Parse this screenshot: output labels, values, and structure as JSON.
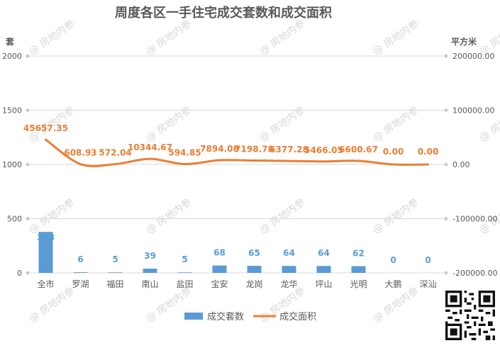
{
  "chart_data": {
    "type": "bar+line",
    "title": "周度各区一手住宅成交套数和成交面积",
    "left_axis_unit": "套",
    "right_axis_unit": "平方米",
    "categories": [
      "全市",
      "罗湖",
      "福田",
      "南山",
      "盐田",
      "宝安",
      "龙岗",
      "龙华",
      "坪山",
      "光明",
      "大鹏",
      "深汕"
    ],
    "series": [
      {
        "name": "成交套数",
        "type": "bar",
        "axis": "left",
        "color": "#5b9bd5",
        "values": [
          378,
          6,
          5,
          39,
          5,
          68,
          65,
          64,
          64,
          62,
          0,
          0
        ],
        "labels": [
          "378",
          "6",
          "5",
          "39",
          "5",
          "68",
          "65",
          "64",
          "64",
          "62",
          "0",
          "0"
        ]
      },
      {
        "name": "成交面积",
        "type": "line",
        "axis": "right",
        "color": "#ed7d31",
        "values": [
          45657.35,
          608.93,
          572.04,
          10344.67,
          594.85,
          7894.08,
          7198.78,
          6377.28,
          5466.05,
          6600.67,
          0.0,
          0.0
        ],
        "labels": [
          "45657.35",
          "608.93",
          "572.04",
          "10344.67",
          "594.85",
          "7894.08",
          "7198.78",
          "6377.28",
          "5466.05",
          "6600.67",
          "0.00",
          "0.00"
        ]
      }
    ],
    "left_axis": {
      "min": 0,
      "max": 2000,
      "ticks": [
        0,
        500,
        1000,
        1500,
        2000
      ],
      "tick_labels": [
        "0",
        "500",
        "1000",
        "1500",
        "2000"
      ]
    },
    "right_axis": {
      "min": -200000,
      "max": 200000,
      "ticks": [
        -200000,
        -100000,
        0,
        100000,
        200000
      ],
      "tick_labels": [
        "-200000.00",
        "-100000.00",
        "0.00",
        "100000.00",
        "200000.00"
      ]
    },
    "grid": true,
    "legend_position": "bottom"
  },
  "watermark": "@ 房地内参",
  "qr_code_icon": "qr-code-icon"
}
